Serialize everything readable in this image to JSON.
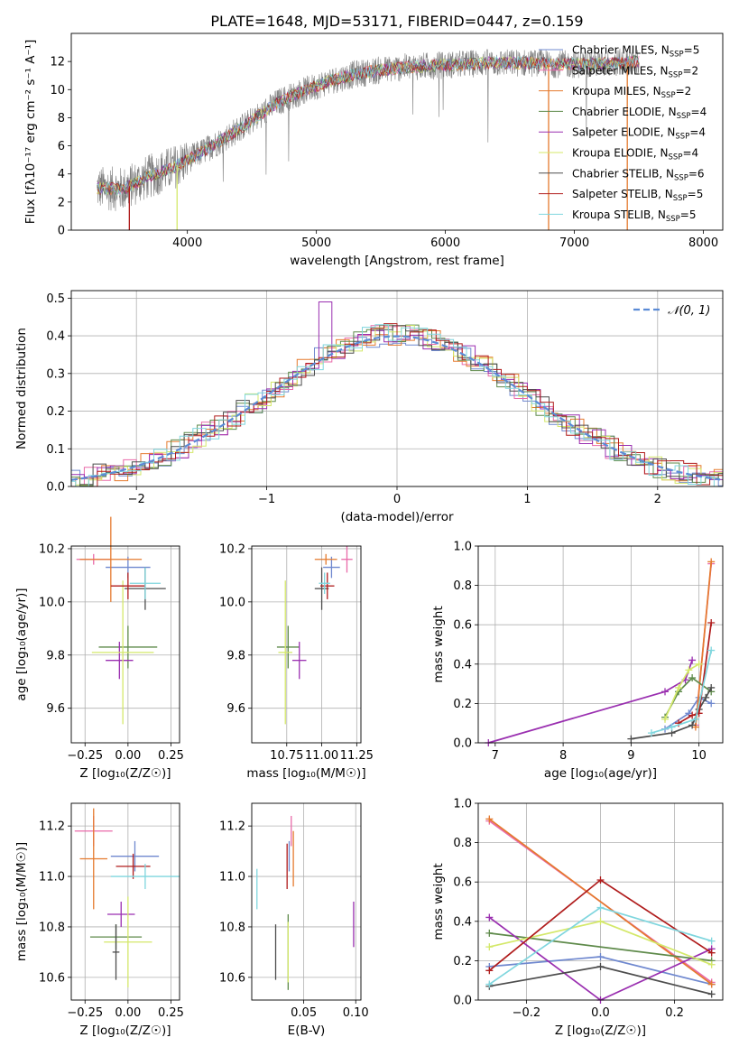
{
  "figure_title": "PLATE=1648, MJD=53171, FIBERID=0447, z=0.159",
  "colors": {
    "Chabrier MILES": "#6f88cf",
    "Salpeter MILES": "#e96aa9",
    "Kroupa MILES": "#e57a2e",
    "Chabrier ELODIE": "#5e8a4a",
    "Salpeter ELODIE": "#9a2fb0",
    "Kroupa ELODIE": "#d4e86a",
    "Chabrier STELIB": "#4d4d4d",
    "Salpeter STELIB": "#b01c1c",
    "Kroupa STELIB": "#7fd6de",
    "data": "#7f7f7f",
    "normal": "#5b8bd6"
  },
  "chart_data": [
    {
      "id": "spectrum",
      "type": "line",
      "xlabel": "wavelength [Angstrom, rest frame]",
      "ylabel": "Flux [fλ10⁻¹⁷ erg cm⁻² s⁻¹ A⁻¹]",
      "xlim": [
        3100,
        8150
      ],
      "ylim": [
        0,
        14
      ],
      "xticks": [
        "4000",
        "5000",
        "6000",
        "7000",
        "8000"
      ],
      "yticks": [
        "0",
        "2",
        "4",
        "6",
        "8",
        "10",
        "12"
      ],
      "grid": false,
      "legend_position": "top-right",
      "continuum_x": [
        3300,
        3500,
        3700,
        3900,
        4100,
        4300,
        4500,
        4700,
        4900,
        5100,
        5300,
        5500,
        5700,
        5900,
        6100,
        6300,
        6500,
        6700,
        6900,
        7100,
        7300,
        7500
      ],
      "continuum_y": [
        3.0,
        2.9,
        3.8,
        4.5,
        5.5,
        6.6,
        7.8,
        9.1,
        9.9,
        10.6,
        11.1,
        11.4,
        11.6,
        11.7,
        11.8,
        11.9,
        11.9,
        11.9,
        11.8,
        11.8,
        11.9,
        12.0
      ],
      "legend": [
        {
          "label": "Chabrier MILES, N",
          "sub": "SSP",
          "n": "=5"
        },
        {
          "label": "Salpeter MILES, N",
          "sub": "SSP",
          "n": "=2"
        },
        {
          "label": "Kroupa MILES, N",
          "sub": "SSP",
          "n": "=2"
        },
        {
          "label": "Chabrier ELODIE, N",
          "sub": "SSP",
          "n": "=4"
        },
        {
          "label": "Salpeter ELODIE, N",
          "sub": "SSP",
          "n": "=4"
        },
        {
          "label": "Kroupa ELODIE, N",
          "sub": "SSP",
          "n": "=4"
        },
        {
          "label": "Chabrier STELIB, N",
          "sub": "SSP",
          "n": "=6"
        },
        {
          "label": "Salpeter STELIB, N",
          "sub": "SSP",
          "n": "=5"
        },
        {
          "label": "Kroupa STELIB, N",
          "sub": "SSP",
          "n": "=5"
        }
      ]
    },
    {
      "id": "residual-histogram",
      "type": "line",
      "xlabel": "(data-model)/error",
      "ylabel": "Normed distribution",
      "xlim": [
        -2.5,
        2.5
      ],
      "ylim": [
        0,
        0.52
      ],
      "xticks": [
        "−2",
        "−1",
        "0",
        "1",
        "2"
      ],
      "yticks": [
        "0.0",
        "0.1",
        "0.2",
        "0.3",
        "0.4",
        "0.5"
      ],
      "grid": true,
      "legend_position": "top-right",
      "legend_label": "𝒩(0, 1)",
      "bin_width": 0.1,
      "envelope": {
        "amplitude": 0.405,
        "sigma": 1.0
      },
      "normal_curve": {
        "mu": 0,
        "sigma": 1
      }
    },
    {
      "id": "age-vs-Z",
      "type": "scatter",
      "xlabel": "Z [log₁₀(Z/Z☉)]",
      "ylabel": "age  [log₁₀(age/yr)]",
      "xlim": [
        -0.33,
        0.3
      ],
      "ylim": [
        9.47,
        10.21
      ],
      "xticks": [
        "−0.25",
        "0.00",
        "0.25"
      ],
      "yticks": [
        "9.6",
        "9.8",
        "10.0",
        "10.2"
      ],
      "grid": true,
      "points": [
        {
          "model": "Chabrier MILES",
          "x": 0.0,
          "y": 10.13,
          "xerr": 0.13,
          "yerr": 0.04
        },
        {
          "model": "Salpeter MILES",
          "x": -0.2,
          "y": 10.16,
          "xerr": 0.1,
          "yerr": 0.02
        },
        {
          "model": "Kroupa MILES",
          "x": -0.1,
          "y": 10.16,
          "xerr": 0.18,
          "yerr": 0.16
        },
        {
          "model": "Chabrier ELODIE",
          "x": 0.0,
          "y": 9.83,
          "xerr": 0.17,
          "yerr": 0.08
        },
        {
          "model": "Salpeter ELODIE",
          "x": -0.05,
          "y": 9.78,
          "xerr": 0.08,
          "yerr": 0.07
        },
        {
          "model": "Kroupa ELODIE",
          "x": -0.03,
          "y": 9.81,
          "xerr": 0.18,
          "yerr": 0.27
        },
        {
          "model": "Chabrier STELIB",
          "x": 0.1,
          "y": 10.05,
          "xerr": 0.12,
          "yerr": 0.08
        },
        {
          "model": "Salpeter STELIB",
          "x": 0.0,
          "y": 10.06,
          "xerr": 0.1,
          "yerr": 0.05
        },
        {
          "model": "Kroupa STELIB",
          "x": 0.1,
          "y": 10.07,
          "xerr": 0.09,
          "yerr": 0.06
        }
      ]
    },
    {
      "id": "age-vs-mass",
      "type": "scatter",
      "xlabel": "mass [log₁₀(M/M☉)]",
      "ylabel": "",
      "xlim": [
        10.5,
        11.28
      ],
      "ylim": [
        9.47,
        10.21
      ],
      "xticks": [
        "10.75",
        "11.00",
        "11.25"
      ],
      "yticks": [
        "9.6",
        "9.8",
        "10.0",
        "10.2"
      ],
      "grid": true,
      "points": [
        {
          "model": "Chabrier MILES",
          "x": 11.07,
          "y": 10.13,
          "xerr": 0.06,
          "yerr": 0.04
        },
        {
          "model": "Salpeter MILES",
          "x": 11.18,
          "y": 10.16,
          "xerr": 0.04,
          "yerr": 0.05
        },
        {
          "model": "Kroupa MILES",
          "x": 11.03,
          "y": 10.16,
          "xerr": 0.08,
          "yerr": 0.02
        },
        {
          "model": "Chabrier ELODIE",
          "x": 10.76,
          "y": 9.83,
          "xerr": 0.08,
          "yerr": 0.08
        },
        {
          "model": "Salpeter ELODIE",
          "x": 10.84,
          "y": 9.78,
          "xerr": 0.05,
          "yerr": 0.07
        },
        {
          "model": "Kroupa ELODIE",
          "x": 10.74,
          "y": 9.81,
          "xerr": 0.05,
          "yerr": 0.27
        },
        {
          "model": "Chabrier STELIB",
          "x": 11.0,
          "y": 10.05,
          "xerr": 0.05,
          "yerr": 0.08
        },
        {
          "model": "Salpeter STELIB",
          "x": 11.04,
          "y": 10.06,
          "xerr": 0.05,
          "yerr": 0.05
        },
        {
          "model": "Kroupa STELIB",
          "x": 11.02,
          "y": 10.07,
          "xerr": 0.04,
          "yerr": 0.04
        }
      ]
    },
    {
      "id": "mass-weight-vs-age",
      "type": "line",
      "xlabel": "age  [log₁₀(age/yr)]",
      "ylabel": "mass weight",
      "xlim": [
        6.75,
        10.35
      ],
      "ylim": [
        0,
        1
      ],
      "xticks": [
        "7",
        "8",
        "9",
        "10"
      ],
      "yticks": [
        "0.0",
        "0.2",
        "0.4",
        "0.6",
        "0.8",
        "1.0"
      ],
      "grid": true,
      "series": [
        {
          "model": "Chabrier MILES",
          "x": [
            9.5,
            9.85,
            10.0,
            10.18
          ],
          "y": [
            0.07,
            0.15,
            0.23,
            0.2
          ]
        },
        {
          "model": "Salpeter MILES",
          "x": [
            9.95,
            10.18
          ],
          "y": [
            0.09,
            0.91
          ]
        },
        {
          "model": "Kroupa MILES",
          "x": [
            9.95,
            10.18
          ],
          "y": [
            0.08,
            0.92
          ]
        },
        {
          "model": "Chabrier ELODIE",
          "x": [
            9.5,
            9.7,
            9.9,
            10.18
          ],
          "y": [
            0.13,
            0.26,
            0.33,
            0.26
          ]
        },
        {
          "model": "Salpeter ELODIE",
          "x": [
            6.9,
            9.5,
            9.8,
            9.9
          ],
          "y": [
            0.0,
            0.26,
            0.32,
            0.42
          ]
        },
        {
          "model": "Kroupa ELODIE",
          "x": [
            9.5,
            9.7,
            9.85,
            10.0
          ],
          "y": [
            0.12,
            0.28,
            0.37,
            0.4
          ]
        },
        {
          "model": "Chabrier STELIB",
          "x": [
            9.0,
            9.6,
            9.9,
            10.0,
            10.1,
            10.18
          ],
          "y": [
            0.02,
            0.05,
            0.09,
            0.17,
            0.23,
            0.28
          ]
        },
        {
          "model": "Salpeter STELIB",
          "x": [
            9.7,
            9.9,
            10.0,
            10.18
          ],
          "y": [
            0.1,
            0.14,
            0.15,
            0.61
          ]
        },
        {
          "model": "Kroupa STELIB",
          "x": [
            9.3,
            9.6,
            9.95,
            10.18
          ],
          "y": [
            0.05,
            0.08,
            0.12,
            0.47
          ]
        }
      ]
    },
    {
      "id": "mass-vs-Z",
      "type": "scatter",
      "xlabel": "Z [log₁₀(Z/Z☉)]",
      "ylabel": "mass [log₁₀(M/M☉)]",
      "xlim": [
        -0.33,
        0.3
      ],
      "ylim": [
        10.51,
        11.29
      ],
      "xticks": [
        "−0.25",
        "0.00",
        "0.25"
      ],
      "yticks": [
        "10.6",
        "10.8",
        "11.0",
        "11.2"
      ],
      "grid": true,
      "points": [
        {
          "model": "Chabrier MILES",
          "x": 0.04,
          "y": 11.08,
          "xerr": 0.14,
          "yerr": 0.06
        },
        {
          "model": "Salpeter MILES",
          "x": -0.2,
          "y": 11.18,
          "xerr": 0.11,
          "yerr": 0.06
        },
        {
          "model": "Kroupa MILES",
          "x": -0.2,
          "y": 11.07,
          "xerr": 0.08,
          "yerr": 0.2
        },
        {
          "model": "Chabrier ELODIE",
          "x": -0.07,
          "y": 10.76,
          "xerr": 0.15,
          "yerr": 0.05
        },
        {
          "model": "Salpeter ELODIE",
          "x": -0.04,
          "y": 10.85,
          "xerr": 0.08,
          "yerr": 0.05
        },
        {
          "model": "Kroupa ELODIE",
          "x": 0.0,
          "y": 10.74,
          "xerr": 0.14,
          "yerr": 0.18
        },
        {
          "model": "Chabrier STELIB",
          "x": -0.07,
          "y": 10.7,
          "xerr": 0.02,
          "yerr": 0.11
        },
        {
          "model": "Salpeter STELIB",
          "x": 0.03,
          "y": 11.04,
          "xerr": 0.1,
          "yerr": 0.05
        },
        {
          "model": "Kroupa STELIB",
          "x": 0.1,
          "y": 11.0,
          "xerr": 0.2,
          "yerr": 0.05
        }
      ]
    },
    {
      "id": "mass-vs-EBV",
      "type": "scatter",
      "xlabel": "E(B-V)",
      "ylabel": "",
      "xlim": [
        0.0,
        0.105
      ],
      "ylim": [
        10.51,
        11.29
      ],
      "xticks": [
        "0.05",
        "0.10"
      ],
      "yticks": [
        "10.6",
        "10.8",
        "11.0",
        "11.2"
      ],
      "grid": true,
      "points": [
        {
          "model": "Chabrier MILES",
          "x": 0.036,
          "y": 11.08,
          "xerr": 0.0,
          "yerr": 0.06
        },
        {
          "model": "Salpeter MILES",
          "x": 0.038,
          "y": 11.18,
          "xerr": 0.0,
          "yerr": 0.06
        },
        {
          "model": "Kroupa MILES",
          "x": 0.04,
          "y": 11.07,
          "xerr": 0.0,
          "yerr": 0.11
        },
        {
          "model": "Chabrier ELODIE",
          "x": 0.035,
          "y": 10.7,
          "xerr": 0.0,
          "yerr": 0.15
        },
        {
          "model": "Salpeter ELODIE",
          "x": 0.098,
          "y": 10.81,
          "xerr": 0.0,
          "yerr": 0.09
        },
        {
          "model": "Kroupa ELODIE",
          "x": 0.035,
          "y": 10.7,
          "xerr": 0.0,
          "yerr": 0.12
        },
        {
          "model": "Chabrier STELIB",
          "x": 0.023,
          "y": 10.7,
          "xerr": 0.0,
          "yerr": 0.11
        },
        {
          "model": "Salpeter STELIB",
          "x": 0.034,
          "y": 11.04,
          "xerr": 0.0,
          "yerr": 0.09
        },
        {
          "model": "Kroupa STELIB",
          "x": 0.005,
          "y": 10.95,
          "xerr": 0.0,
          "yerr": 0.08
        }
      ]
    },
    {
      "id": "mass-weight-vs-Z",
      "type": "line",
      "xlabel": "Z [log₁₀(Z/Z☉)]",
      "ylabel": "mass weight",
      "xlim": [
        -0.33,
        0.33
      ],
      "ylim": [
        0,
        1
      ],
      "xticks": [
        "−0.2",
        "0.0",
        "0.2"
      ],
      "yticks": [
        "0.0",
        "0.2",
        "0.4",
        "0.6",
        "0.8",
        "1.0"
      ],
      "grid": true,
      "series": [
        {
          "model": "Chabrier MILES",
          "x": [
            -0.3,
            0.0,
            0.3
          ],
          "y": [
            0.17,
            0.22,
            0.08
          ]
        },
        {
          "model": "Salpeter MILES",
          "x": [
            -0.3,
            0.3
          ],
          "y": [
            0.91,
            0.09
          ]
        },
        {
          "model": "Kroupa MILES",
          "x": [
            -0.3,
            0.3
          ],
          "y": [
            0.92,
            0.08
          ]
        },
        {
          "model": "Chabrier ELODIE",
          "x": [
            -0.3,
            0.3
          ],
          "y": [
            0.34,
            0.2
          ]
        },
        {
          "model": "Salpeter ELODIE",
          "x": [
            -0.3,
            0.0,
            0.3
          ],
          "y": [
            0.42,
            0.0,
            0.26
          ]
        },
        {
          "model": "Kroupa ELODIE",
          "x": [
            -0.3,
            0.0,
            0.3
          ],
          "y": [
            0.27,
            0.4,
            0.18
          ]
        },
        {
          "model": "Chabrier STELIB",
          "x": [
            -0.3,
            0.0,
            0.3
          ],
          "y": [
            0.07,
            0.17,
            0.03
          ]
        },
        {
          "model": "Salpeter STELIB",
          "x": [
            -0.3,
            0.0,
            0.3
          ],
          "y": [
            0.15,
            0.61,
            0.24
          ]
        },
        {
          "model": "Kroupa STELIB",
          "x": [
            -0.3,
            0.0,
            0.3
          ],
          "y": [
            0.08,
            0.47,
            0.3
          ]
        }
      ]
    }
  ]
}
